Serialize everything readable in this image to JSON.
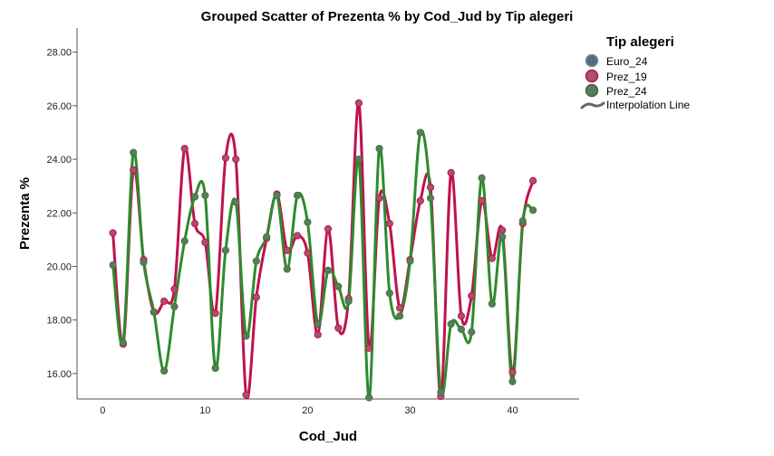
{
  "chart_data": {
    "type": "scatter",
    "title": "Grouped Scatter of Prezenta % by Cod_Jud by Tip alegeri",
    "xlabel": "Cod_Jud",
    "ylabel": "Prezenta %",
    "xlim": [
      -2.5,
      46.5
    ],
    "ylim": [
      15.05,
      28.9
    ],
    "xticks": [
      0,
      10,
      20,
      30,
      40
    ],
    "xtick_labels": [
      "0",
      "10",
      "20",
      "30",
      "40"
    ],
    "yticks": [
      16,
      18,
      20,
      22,
      24,
      26,
      28
    ],
    "ytick_labels": [
      "16.00",
      "18.00",
      "20.00",
      "22.00",
      "24.00",
      "26.00",
      "28.00"
    ],
    "grid": false,
    "legend": {
      "title": "Tip alegeri",
      "placement": "right",
      "entries": [
        "Euro_24",
        "Prez_19",
        "Prez_24",
        "Interpolation Line"
      ]
    },
    "series": [
      {
        "name": "Euro_24",
        "color": "#6b7b8c",
        "line": false,
        "x": [],
        "y": []
      },
      {
        "name": "Prez_19",
        "color": "#c0124f",
        "line": true,
        "x": [
          1,
          2,
          3,
          4,
          5,
          6,
          7,
          8,
          9,
          10,
          11,
          12,
          13,
          14,
          15,
          16,
          17,
          18,
          19,
          20,
          21,
          22,
          23,
          24,
          25,
          26,
          27,
          28,
          29,
          30,
          31,
          32,
          33,
          34,
          35,
          36,
          37,
          38,
          39,
          40,
          41,
          42
        ],
        "y": [
          21.25,
          17.1,
          23.6,
          20.25,
          18.3,
          18.7,
          19.15,
          24.4,
          21.6,
          20.9,
          18.25,
          24.05,
          24.0,
          15.2,
          18.85,
          21.05,
          22.7,
          20.6,
          21.15,
          20.5,
          17.45,
          21.4,
          17.7,
          18.8,
          26.1,
          16.95,
          22.55,
          21.6,
          18.45,
          20.25,
          22.45,
          22.95,
          15.15,
          23.5,
          18.15,
          18.9,
          22.45,
          20.3,
          21.35,
          16.05,
          21.6,
          23.2
        ]
      },
      {
        "name": "Prez_24",
        "color": "#2e8b2e",
        "line": true,
        "x": [
          1,
          2,
          3,
          4,
          5,
          6,
          7,
          8,
          9,
          10,
          11,
          12,
          13,
          14,
          15,
          16,
          17,
          18,
          19,
          20,
          21,
          22,
          23,
          24,
          25,
          26,
          27,
          28,
          29,
          30,
          31,
          32,
          33,
          34,
          35,
          36,
          37,
          38,
          39,
          40,
          41,
          42
        ],
        "y": [
          20.05,
          17.15,
          24.25,
          20.15,
          18.3,
          16.1,
          18.5,
          20.95,
          22.6,
          22.65,
          16.2,
          20.6,
          22.4,
          17.4,
          20.2,
          21.1,
          22.65,
          19.9,
          22.65,
          21.65,
          17.85,
          19.85,
          19.25,
          18.7,
          24.0,
          15.1,
          24.4,
          19.0,
          18.15,
          20.2,
          25.0,
          22.55,
          15.3,
          17.85,
          17.65,
          17.55,
          23.3,
          18.6,
          21.1,
          15.7,
          21.7,
          22.1
        ]
      }
    ]
  }
}
